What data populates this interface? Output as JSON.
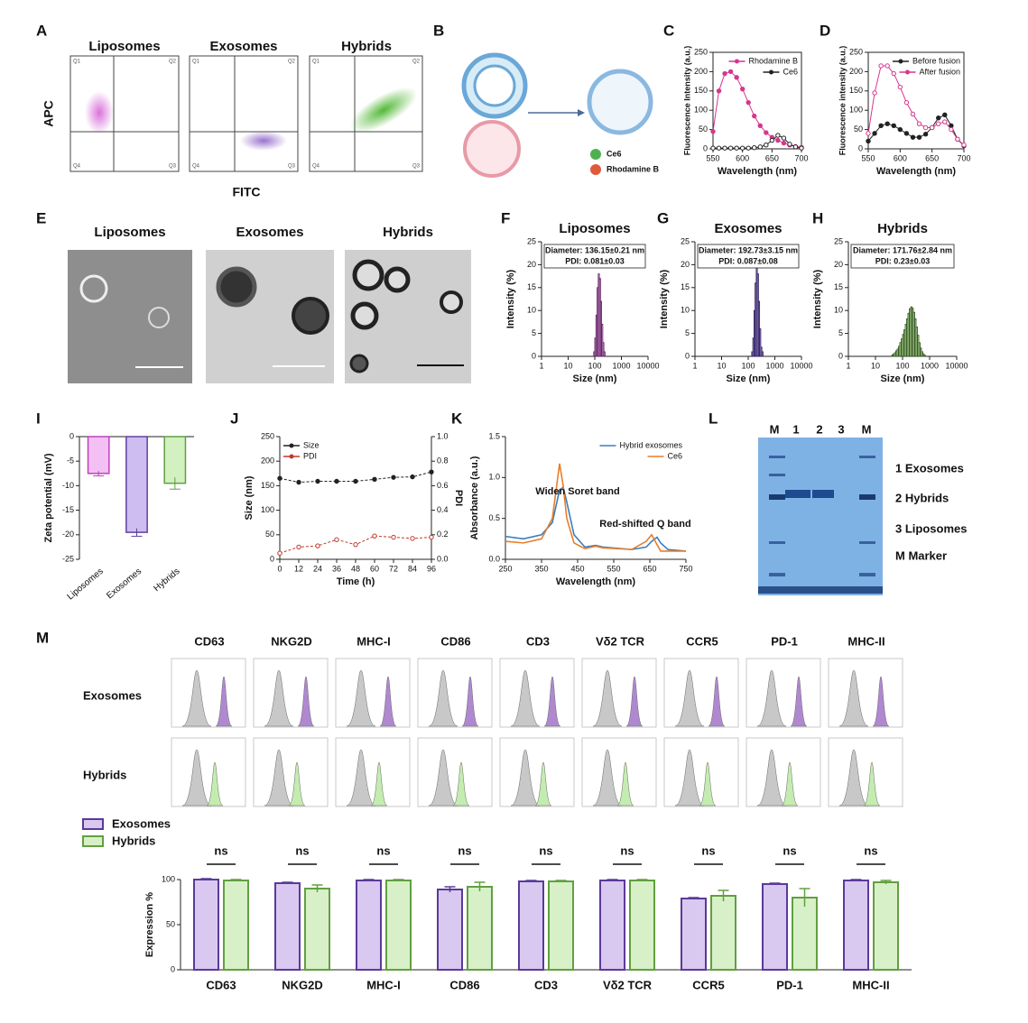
{
  "figure": {
    "panel_labels": [
      "A",
      "B",
      "C",
      "D",
      "E",
      "F",
      "G",
      "H",
      "I",
      "J",
      "K",
      "L",
      "M"
    ],
    "A": {
      "titles": [
        "Liposomes",
        "Exosomes",
        "Hybrids"
      ],
      "ylabel": "APC",
      "xlabel": "FITC",
      "quadrants": [
        "Q1",
        "Q2",
        "Q4",
        "Q3"
      ]
    },
    "B": {
      "labels": [
        "Ce6",
        "Rhodamine B"
      ]
    },
    "E": {
      "titles": [
        "Liposomes",
        "Exosomes",
        "Hybrids"
      ]
    },
    "L": {
      "lanes": [
        "M",
        "1",
        "2",
        "3",
        "M"
      ],
      "legend": [
        "1 Exosomes",
        "2 Hybrids",
        "3 Liposomes",
        "M Marker"
      ]
    }
  },
  "chart_data": [
    {
      "type": "line",
      "frame": true,
      "markers": true,
      "legend": "upper right",
      "xlabel": "Wavelength (nm)",
      "ylabel": "Fluorescence Intensity (a.u.)",
      "x": [
        550,
        560,
        570,
        580,
        590,
        600,
        610,
        620,
        630,
        640,
        650,
        660,
        670,
        680,
        690,
        700
      ],
      "xlim": [
        550,
        700
      ],
      "xticks": [
        550,
        600,
        650,
        700
      ],
      "ylim": [
        0,
        250
      ],
      "yticks": [
        0,
        50,
        100,
        150,
        200,
        250
      ],
      "series": [
        {
          "name": "Rhodamine B",
          "color": "#d6368f",
          "values": [
            45,
            150,
            195,
            200,
            185,
            155,
            120,
            85,
            60,
            42,
            30,
            22,
            15,
            10,
            6,
            4
          ]
        },
        {
          "name": "Ce6",
          "color": "#222222",
          "values": [
            2,
            2,
            2,
            2,
            2,
            2,
            2,
            3,
            5,
            10,
            22,
            35,
            28,
            12,
            5,
            2
          ]
        }
      ]
    },
    {
      "type": "line",
      "frame": true,
      "markers": true,
      "legend": "upper right",
      "xlabel": "Wavelength (nm)",
      "ylabel": "Fluorescence intensity (a.u.)",
      "x": [
        550,
        560,
        570,
        580,
        590,
        600,
        610,
        620,
        630,
        640,
        650,
        660,
        670,
        680,
        690,
        700
      ],
      "xlim": [
        550,
        700
      ],
      "xticks": [
        550,
        600,
        650,
        700
      ],
      "ylim": [
        0,
        250
      ],
      "yticks": [
        0,
        50,
        100,
        150,
        200,
        250
      ],
      "series": [
        {
          "name": "Before fusion",
          "color": "#222222",
          "values": [
            20,
            40,
            60,
            65,
            60,
            50,
            40,
            30,
            30,
            38,
            55,
            80,
            88,
            60,
            25,
            8
          ]
        },
        {
          "name": "After fusion",
          "color": "#d6368f",
          "values": [
            40,
            145,
            215,
            215,
            195,
            160,
            120,
            90,
            65,
            55,
            55,
            65,
            70,
            50,
            25,
            10
          ]
        }
      ]
    },
    {
      "type": "histogram",
      "title": "Liposomes",
      "xlabel": "Size (nm)",
      "ylabel": "Intensity (%)",
      "xlog": true,
      "color": "#e8b4ee",
      "edge": "#5a1a5a",
      "annotations": [
        "Diameter: 136.15±0.21 nm",
        "PDI: 0.081±0.03"
      ],
      "xlim": [
        1,
        10000
      ],
      "xticks": [
        1,
        10,
        100,
        1000,
        10000
      ],
      "ylim": [
        0,
        25
      ],
      "yticks": [
        0,
        5,
        10,
        15,
        20,
        25
      ],
      "bins": [
        91,
        100,
        110,
        122,
        135,
        149,
        164,
        181,
        200,
        220,
        243
      ],
      "counts": [
        1,
        4,
        9,
        15,
        18,
        17,
        12,
        7,
        3,
        1
      ]
    },
    {
      "type": "histogram",
      "title": "Exosomes",
      "xlabel": "Size (nm)",
      "ylabel": "Intensity (%)",
      "xlog": true,
      "color": "#b8a4e4",
      "edge": "#2a1a5a",
      "annotations": [
        "Diameter: 192.73±3.15 nm",
        "PDI: 0.087±0.08"
      ],
      "xlim": [
        1,
        10000
      ],
      "xticks": [
        1,
        10,
        100,
        1000,
        10000
      ],
      "ylim": [
        0,
        25
      ],
      "yticks": [
        0,
        5,
        10,
        15,
        20,
        25
      ],
      "bins": [
        135,
        149,
        164,
        181,
        200,
        220,
        243,
        268,
        296,
        327,
        361
      ],
      "counts": [
        1,
        4,
        10,
        16,
        19.5,
        18,
        12,
        6,
        2,
        1
      ]
    },
    {
      "type": "histogram",
      "title": "Hybrids",
      "xlabel": "Size (nm)",
      "ylabel": "Intensity (%)",
      "xlog": true,
      "color": "#b8e09a",
      "edge": "#2a4a1a",
      "annotations": [
        "Diameter: 171.76±2.84 nm",
        "PDI: 0.23±0.03"
      ],
      "xlim": [
        1,
        10000
      ],
      "xticks": [
        1,
        10,
        100,
        1000,
        10000
      ],
      "ylim": [
        0,
        25
      ],
      "yticks": [
        0,
        5,
        10,
        15,
        20,
        25
      ],
      "bins": [
        40,
        45,
        50,
        56,
        63,
        71,
        79,
        89,
        100,
        112,
        126,
        141,
        158,
        178,
        200,
        224,
        251,
        282,
        316,
        355,
        398,
        447,
        501,
        562,
        631,
        708
      ],
      "counts": [
        0.3,
        0.5,
        0.8,
        1.2,
        1.6,
        2.2,
        3,
        3.8,
        4.8,
        5.8,
        7,
        8.2,
        9.4,
        10.4,
        10.8,
        10.5,
        9.6,
        8.2,
        6.4,
        4.6,
        3,
        1.8,
        1,
        0.5,
        0.2
      ]
    },
    {
      "type": "bar",
      "ylabel": "Zeta potential (mV)",
      "categories": [
        "Liposomes",
        "Exosomes",
        "Hybrids"
      ],
      "values": [
        -7.5,
        -19.5,
        -9.5
      ],
      "errors": [
        0.5,
        0.8,
        1.2
      ],
      "colors": [
        "#f3c0f3",
        "#cdbdf0",
        "#d3f0c0"
      ],
      "edge_colors": [
        "#c040c0",
        "#6040a0",
        "#60a040"
      ],
      "ylim": [
        -25,
        0
      ],
      "yticks": [
        0,
        -5,
        -10,
        -15,
        -20,
        -25
      ]
    },
    {
      "type": "line",
      "markers": true,
      "legend": "upper left",
      "xlabel": "Time (h)",
      "ylabel": "Size (nm)",
      "y2label": "PDI",
      "x": [
        0,
        12,
        24,
        36,
        48,
        60,
        72,
        84,
        96
      ],
      "xlim": [
        0,
        96
      ],
      "xticks": [
        0,
        12,
        24,
        36,
        48,
        60,
        72,
        84,
        96
      ],
      "ylim": [
        0,
        250
      ],
      "yticks": [
        0,
        50,
        100,
        150,
        200,
        250
      ],
      "y2lim": [
        0,
        1
      ],
      "y2ticks": [
        {
          "value": 0,
          "label": "0.0"
        },
        0.2,
        0.4,
        0.6,
        0.8,
        {
          "value": 1,
          "label": "1.0"
        }
      ],
      "series": [
        {
          "name": "Size",
          "color": "#222222",
          "values": [
            165,
            157,
            159,
            159,
            159,
            163,
            167,
            168,
            178
          ]
        },
        {
          "name": "PDI",
          "color": "#c0392b",
          "axis": "y2",
          "values": [
            0.05,
            0.1,
            0.11,
            0.16,
            0.12,
            0.19,
            0.18,
            0.17,
            0.18
          ]
        }
      ]
    },
    {
      "type": "line",
      "legend": "upper right",
      "xlabel": "Wavelength (nm)",
      "ylabel": "Absorbance (a.u.)",
      "annotations": [
        "Widen Soret band",
        "Red-shifted Q band"
      ],
      "x": [
        250,
        300,
        350,
        380,
        400,
        410,
        420,
        440,
        470,
        500,
        520,
        600,
        640,
        655,
        670,
        680,
        700,
        750
      ],
      "xlim": [
        250,
        750
      ],
      "xticks": [
        250,
        350,
        450,
        550,
        650,
        750
      ],
      "ylim": [
        0,
        1.5
      ],
      "yticks": [
        {
          "value": 0,
          "label": "0.0"
        },
        0.5,
        {
          "value": 1,
          "label": "1.0"
        },
        1.5
      ],
      "series": [
        {
          "name": "Hybrid exosomes",
          "color": "#3a7ebf",
          "values": [
            0.28,
            0.25,
            0.3,
            0.45,
            0.85,
            0.88,
            0.7,
            0.3,
            0.15,
            0.17,
            0.15,
            0.12,
            0.15,
            0.22,
            0.27,
            0.2,
            0.12,
            0.1
          ]
        },
        {
          "name": "Ce6",
          "color": "#e87d2a",
          "values": [
            0.22,
            0.2,
            0.25,
            0.5,
            1.17,
            0.9,
            0.5,
            0.2,
            0.13,
            0.16,
            0.14,
            0.12,
            0.22,
            0.3,
            0.18,
            0.1,
            0.1,
            0.1
          ]
        }
      ]
    },
    {
      "type": "grouped-bar",
      "ylabel": "Expression %",
      "categories": [
        "CD63",
        "NKG2D",
        "MHC-I",
        "CD86",
        "CD3",
        "Vδ2 TCR",
        "CCR5",
        "PD-1",
        "MHC-II"
      ],
      "annotations": [
        "ns",
        "ns",
        "ns",
        "ns",
        "ns",
        "ns",
        "ns",
        "ns",
        "ns"
      ],
      "ylim": [
        0,
        100
      ],
      "yticks": [
        0,
        50,
        100
      ],
      "series": [
        {
          "name": "Exosomes",
          "color": "#d9c8f0",
          "edge": "#5a3a9a",
          "values": [
            100,
            96,
            99,
            89,
            98,
            99,
            79,
            95,
            99
          ],
          "errors": [
            1,
            1,
            1,
            3,
            1,
            1,
            1,
            1,
            1
          ]
        },
        {
          "name": "Hybrids",
          "color": "#d8f0c8",
          "edge": "#60a040",
          "values": [
            99,
            90,
            99,
            92,
            98,
            99,
            82,
            80,
            97
          ],
          "errors": [
            1,
            4,
            1,
            5,
            1,
            1,
            6,
            10,
            2
          ]
        }
      ]
    }
  ]
}
